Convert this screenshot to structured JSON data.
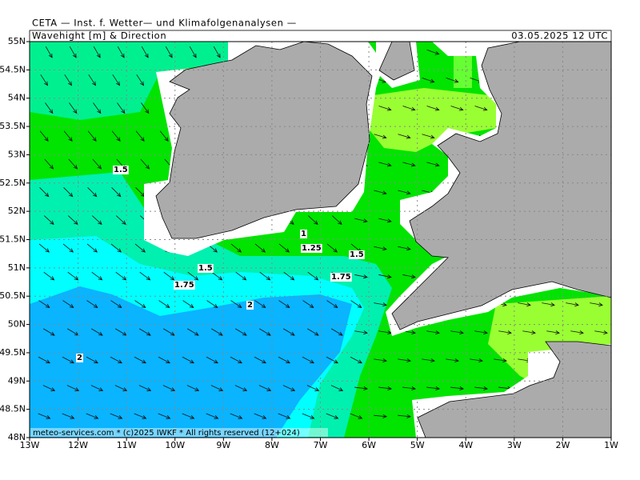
{
  "header": {
    "institute": "CETA — Inst. f. Wetter— und Klimafolgenanalysen —",
    "product": "Wavehight [m] & Direction",
    "valid_time": "03.05.2025 12 UTC"
  },
  "axes": {
    "lat_labels": [
      "55N",
      "54.5N",
      "54N",
      "53.5N",
      "53N",
      "52.5N",
      "52N",
      "51.5N",
      "51N",
      "50.5N",
      "50N",
      "49.5N",
      "49N",
      "48.5N",
      "48N"
    ],
    "lon_labels": [
      "13W",
      "12W",
      "11W",
      "10W",
      "9W",
      "8W",
      "7W",
      "6W",
      "5W",
      "4W",
      "3W",
      "2W",
      "1W"
    ]
  },
  "contour_labels": [
    "1.5",
    "1",
    "1.25",
    "1.5",
    "1.5",
    "1.75",
    "1.75",
    "2",
    "2"
  ],
  "footer": "meteo-services.com * (c)2025 IWKF * All rights reserved (12+024)"
}
